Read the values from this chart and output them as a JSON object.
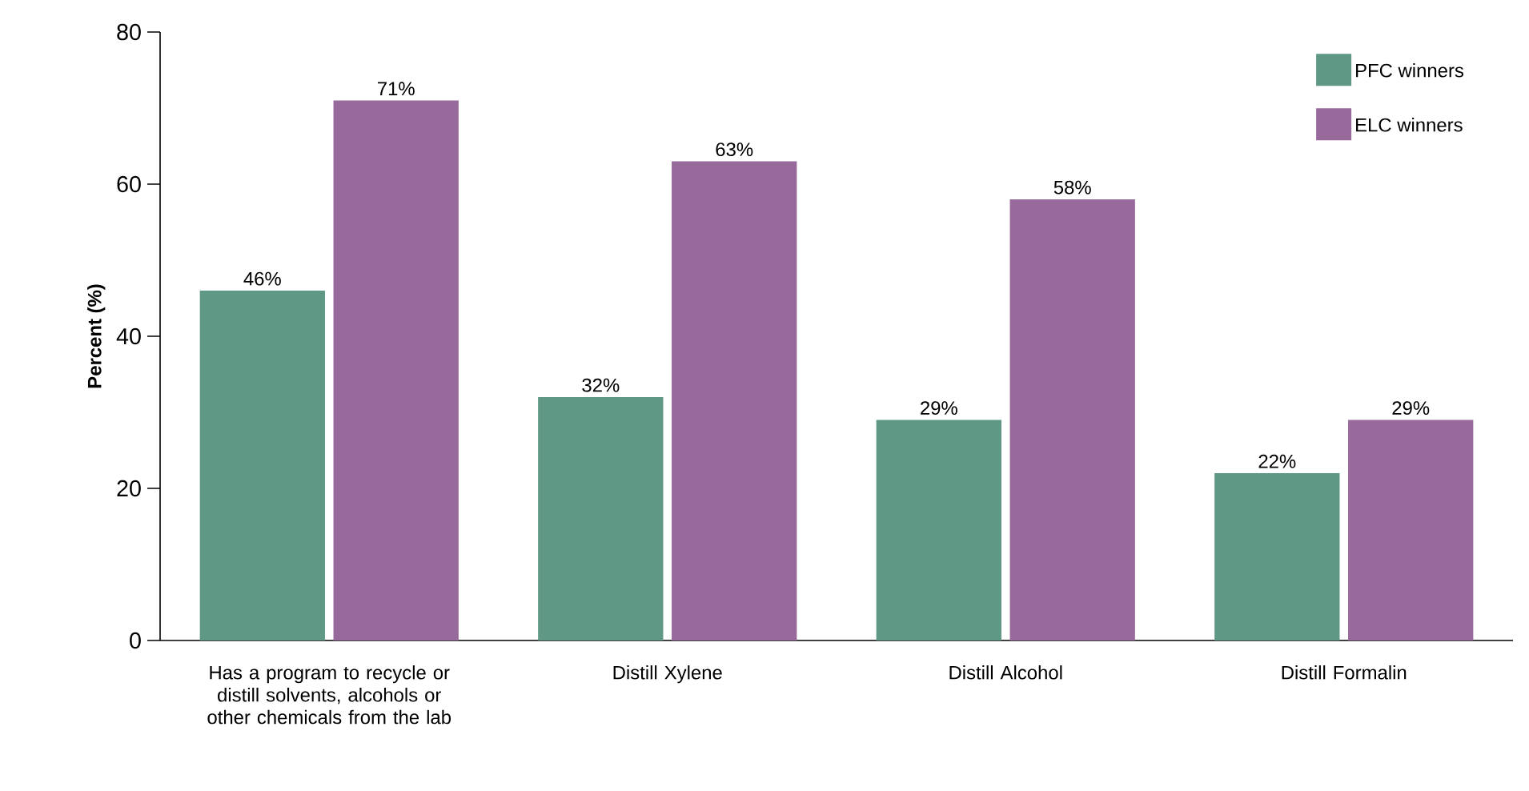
{
  "chart_data": {
    "type": "bar",
    "ylabel": "Percent (%)",
    "categories": [
      "Has a program to recycle or distill solvents, alcohols or other chemicals from the lab",
      "Distill Xylene",
      "Distill Alcohol",
      "Distill Formalin"
    ],
    "series": [
      {
        "name": "PFC winners",
        "color": "#5f9985",
        "values": [
          46,
          32,
          29,
          22
        ],
        "value_labels": [
          "46%",
          "32%",
          "29%",
          "22%"
        ]
      },
      {
        "name": "ELC winners",
        "color": "#98699b",
        "values": [
          71,
          63,
          58,
          29
        ],
        "value_labels": [
          "71%",
          "63%",
          "58%",
          "29%"
        ]
      }
    ],
    "ylim": [
      0,
      80
    ],
    "yticks": [
      0,
      20,
      40,
      60,
      80
    ],
    "grid": false,
    "legend": "top right"
  }
}
